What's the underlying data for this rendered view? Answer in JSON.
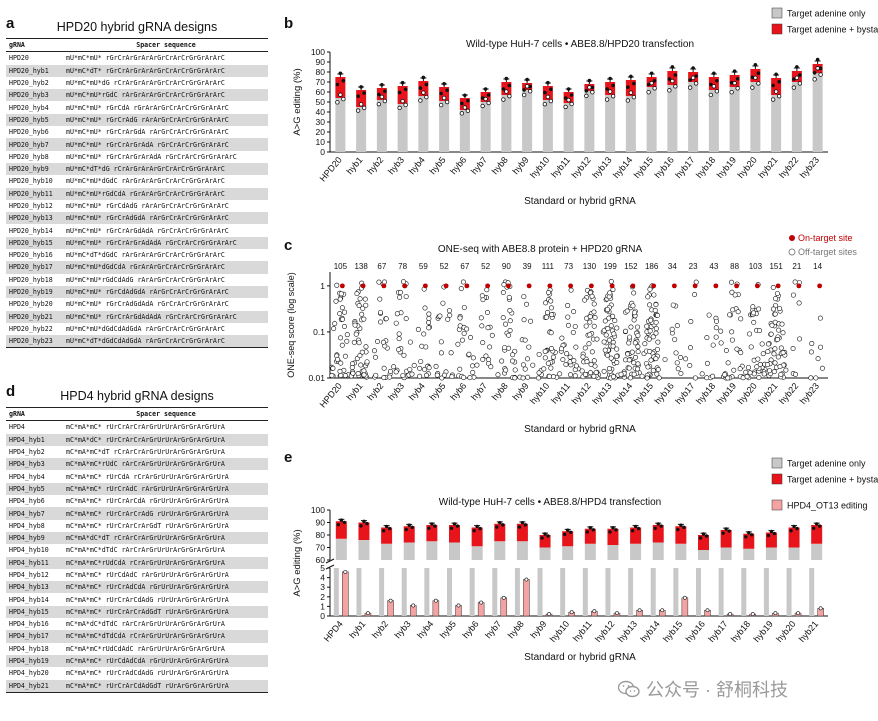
{
  "panels": {
    "a": "a",
    "b": "b",
    "c": "c",
    "d": "d",
    "e": "e"
  },
  "table_a": {
    "title": "HPD20 hybrid gRNA designs",
    "header_name": "gRNA",
    "header_spacer": "Spacer sequence",
    "rows": [
      {
        "name": "HPD20",
        "seq": "mU*mC*mU* rGrCrArGrArArGrCrArCrGrGrArArC"
      },
      {
        "name": "HPD20_hyb1",
        "seq": "mU*mC*dT* rGrCrArGrArArGrCrArCrGrGrArArC"
      },
      {
        "name": "HPD20_hyb2",
        "seq": "mU*mC*mU*dG rCrArGrArArGrCrArCrGrGrArArC"
      },
      {
        "name": "HPD20_hyb3",
        "seq": "mU*mC*mU*rGdC rArGrArArGrCrArCrGrGrArArC"
      },
      {
        "name": "HPD20_hyb4",
        "seq": "mU*mC*mU* rGrCdA rGrArArGrCrArCrGrGrArArC"
      },
      {
        "name": "HPD20_hyb5",
        "seq": "mU*mC*mU* rGrCrAdG rArArGrCrArCrGrGrArArC"
      },
      {
        "name": "HPD20_hyb6",
        "seq": "mU*mC*mU* rGrCrArGdA rArGrCrArCrGrGrArArC"
      },
      {
        "name": "HPD20_hyb7",
        "seq": "mU*mC*mU* rGrCrArGrAdA rGrCrArCrGrGrArArC"
      },
      {
        "name": "HPD20_hyb8",
        "seq": "mU*mC*mU* rGrCrArGrArAdA rGrCrArCrGrGrArArC"
      },
      {
        "name": "HPD20_hyb9",
        "seq": "mU*mC*dT*dG rCrArGrArArGrCrArCrGrGrArArC"
      },
      {
        "name": "HPD20_hyb10",
        "seq": "mU*mC*mU*dGdC rArGrArArGrCrArCrGrGrArArC"
      },
      {
        "name": "HPD20_hyb11",
        "seq": "mU*mC*mU*rGdCdA rGrArArGrCrArCrGrGrArArC"
      },
      {
        "name": "HPD20_hyb12",
        "seq": "mU*mC*mU* rGrCdAdG rArArGrCrArCrGrGrArArC"
      },
      {
        "name": "HPD20_hyb13",
        "seq": "mU*mC*mU* rGrCrAdGdA rArGrCrArCrGrGrArArC"
      },
      {
        "name": "HPD20_hyb14",
        "seq": "mU*mC*mU* rGrCrArGdAdA rGrCrArCrGrGrArArC"
      },
      {
        "name": "HPD20_hyb15",
        "seq": "mU*mC*mU* rGrCrArGrAdAdA rGrCrArCrGrGrArArC"
      },
      {
        "name": "HPD20_hyb16",
        "seq": "mU*mC*dT*dGdC rArGrArArGrCrArCrGrGrArArC"
      },
      {
        "name": "HPD20_hyb17",
        "seq": "mU*mC*mU*dGdCdA rGrArArGrCrArCrGrGrArArC"
      },
      {
        "name": "HPD20_hyb18",
        "seq": "mU*mC*mU*rGdCdAdG rArArGrCrArCrGrGrArArC"
      },
      {
        "name": "HPD20_hyb19",
        "seq": "mU*mC*mU* rGrCdAdGdA rArGrCrArCrGrGrArArC"
      },
      {
        "name": "HPD20_hyb20",
        "seq": "mU*mC*mU* rGrCrAdGdAdA rGrCrArCrGrGrArArC"
      },
      {
        "name": "HPD20_hyb21",
        "seq": "mU*mC*mU* rGrCrArGdAdAdA rGrCrArCrGrGrArArC"
      },
      {
        "name": "HPD20_hyb22",
        "seq": "mU*mC*mU*dGdCdAdGdA rArGrCrArCrGrGrArArC"
      },
      {
        "name": "HPD20_hyb23",
        "seq": "mU*mC*dT*dGdCdAdGdA rArGrCrArCrGrGrArArC"
      }
    ]
  },
  "table_d": {
    "title": "HPD4 hybrid gRNA designs",
    "header_name": "gRNA",
    "header_spacer": "Spacer sequence",
    "rows": [
      {
        "name": "HPD4",
        "seq": "mC*mA*mC* rUrCrArCrArGrUrUrArGrGrArGrUrA"
      },
      {
        "name": "HPD4_hyb1",
        "seq": "mC*mA*dC* rUrCrArCrArGrUrUrArGrGrArGrUrA"
      },
      {
        "name": "HPD4_hyb2",
        "seq": "mC*mA*mC*dT rCrArCrArGrUrUrArGrGrArGrUrA"
      },
      {
        "name": "HPD4_hyb3",
        "seq": "mC*mA*mC*rUdC rArCrArGrUrUrArGrGrArGrUrA"
      },
      {
        "name": "HPD4_hyb4",
        "seq": "mC*mA*mC* rUrCdA rCrArGrUrUrArGrGrArGrUrA"
      },
      {
        "name": "HPD4_hyb5",
        "seq": "mC*mA*mC* rUrCrAdC rArGrUrUrArGrGrArGrUrA"
      },
      {
        "name": "HPD4_hyb6",
        "seq": "mC*mA*mC* rUrCrArCdA rGrUrUrArGrGrArGrUrA"
      },
      {
        "name": "HPD4_hyb7",
        "seq": "mC*mA*mC* rUrCrArCrAdG rUrUrArGrGrArGrUrA"
      },
      {
        "name": "HPD4_hyb8",
        "seq": "mC*mA*mC* rUrCrArCrArGdT rUrArGrGrArGrUrA"
      },
      {
        "name": "HPD4_hyb9",
        "seq": "mC*mA*dC*dT rCrArCrArGrUrUrArGrGrArGrUrA"
      },
      {
        "name": "HPD4_hyb10",
        "seq": "mC*mA*mC*dTdC rArCrArGrUrUrArGrGrArGrUrA"
      },
      {
        "name": "HPD4_hyb11",
        "seq": "mC*mA*mC*rUdCdA rCrArGrUrUrArGrGrArGrUrA"
      },
      {
        "name": "HPD4_hyb12",
        "seq": "mC*mA*mC* rUrCdAdC rArGrUrUrArGrGrArGrUrA"
      },
      {
        "name": "HPD4_hyb13",
        "seq": "mC*mA*mC* rUrCrAdCdA rGrUrUrArGrGrArGrUrA"
      },
      {
        "name": "HPD4_hyb14",
        "seq": "mC*mA*mC* rUrCrArCdAdG rUrUrArGrGrArGrUrA"
      },
      {
        "name": "HPD4_hyb15",
        "seq": "mC*mA*mC* rUrCrArCrAdGdT rUrArGrGrArGrUrA"
      },
      {
        "name": "HPD4_hyb16",
        "seq": "mC*mA*dC*dTdC rArCrArGrUrUrArGrGrArGrUrA"
      },
      {
        "name": "HPD4_hyb17",
        "seq": "mC*mA*mC*dTdCdA rCrArGrUrUrArGrGrArGrUrA"
      },
      {
        "name": "HPD4_hyb18",
        "seq": "mC*mA*mC*rUdCdAdC rArGrUrUrArGrGrArGrUrA"
      },
      {
        "name": "HPD4_hyb19",
        "seq": "mC*mA*mC* rUrCdAdCdA rGrUrUrArGrGrArGrUrA"
      },
      {
        "name": "HPD4_hyb20",
        "seq": "mC*mA*mC* rUrCrAdCdAdG rUrUrArGrGrArGrUrA"
      },
      {
        "name": "HPD4_hyb21",
        "seq": "mC*mA*mC* rUrCrArCdAdGdT rUrArGrGrArGrUrA"
      }
    ]
  },
  "colors": {
    "red": "#e8141b",
    "gray": "#c8c8c8",
    "pink": "#f4a3a3",
    "dot_red": "#c00000"
  },
  "watermark": {
    "text": "公众号 · 舒桐科技",
    "icon": "wechat-icon"
  },
  "chart_data": [
    {
      "id": "b",
      "type": "bar",
      "title": "Wild-type HuH-7 cells • ABE8.8/HPD20 transfection",
      "ylabel": "A>G editing (%)",
      "xlabel": "Standard or hybrid gRNA",
      "ylim": [
        0,
        100
      ],
      "yticks": [
        0,
        10,
        20,
        30,
        40,
        50,
        60,
        70,
        80,
        90,
        100
      ],
      "legend": [
        "Target adenine only",
        "Target adenine + bystander edit (s)"
      ],
      "legend_position": "top-right",
      "categories": [
        "HPD20",
        "hyb1",
        "hyb2",
        "hyb3",
        "hyb4",
        "hyb5",
        "hyb6",
        "hyb7",
        "hyb8",
        "hyb9",
        "hyb10",
        "hyb11",
        "hyb12",
        "hyb13",
        "hyb14",
        "hyb15",
        "hyb16",
        "hyb17",
        "hyb18",
        "hyb19",
        "hyb20",
        "hyb21",
        "hyb22",
        "hyb23"
      ],
      "series": [
        {
          "name": "Target adenine only",
          "values": [
            54,
            45,
            52,
            48,
            56,
            51,
            42,
            50,
            57,
            62,
            52,
            49,
            61,
            57,
            56,
            65,
            67,
            70,
            62,
            65,
            70,
            57,
            70,
            79
          ]
        },
        {
          "name": "Target adenine + bystander edit (s)",
          "values": [
            75,
            62,
            64,
            66,
            71,
            65,
            54,
            60,
            70,
            69,
            66,
            60,
            68,
            70,
            72,
            75,
            81,
            80,
            75,
            77,
            83,
            74,
            81,
            88
          ]
        }
      ]
    },
    {
      "id": "c",
      "type": "scatter",
      "title": "ONE-seq with ABE8.8 protein + HPD20 gRNA",
      "ylabel": "ONE-seq score (log scale)",
      "xlabel": "Standard or hybrid gRNA",
      "yscale": "log",
      "ylim": [
        0.01,
        2
      ],
      "yticks": [
        "0.01",
        "0.1",
        "1"
      ],
      "legend": [
        "On-target site",
        "Off-target sites"
      ],
      "legend_position": "top-right",
      "categories": [
        "HPD20",
        "hyb1",
        "hyb2",
        "hyb3",
        "hyb4",
        "hyb5",
        "hyb6",
        "hyb7",
        "hyb8",
        "hyb9",
        "hyb10",
        "hyb11",
        "hyb12",
        "hyb13",
        "hyb14",
        "hyb15",
        "hyb16",
        "hyb17",
        "hyb18",
        "hyb19",
        "hyb20",
        "hyb21",
        "hyb22",
        "hyb23"
      ],
      "counts": [
        "105",
        "138",
        "67",
        "78",
        "59",
        "52",
        "67",
        "52",
        "90",
        "39",
        "111",
        "73",
        "130",
        "199",
        "152",
        "186",
        "34",
        "23",
        "43",
        "88",
        "103",
        "151",
        "21",
        "14"
      ],
      "on_target": [
        1,
        1,
        1,
        1,
        1,
        1,
        1,
        1,
        1,
        1,
        1,
        1,
        1,
        1,
        1,
        1,
        1,
        1,
        1,
        1,
        1,
        1,
        1,
        1
      ]
    },
    {
      "id": "e",
      "type": "bar",
      "title": "Wild-type HuH-7 cells • ABE8.8/HPD4 transfection",
      "ylabel": "A>G editing (%)",
      "xlabel": "Standard or hybrid gRNA",
      "ylim_top": [
        60,
        100
      ],
      "yticks_top": [
        60,
        70,
        80,
        90,
        100
      ],
      "ylim_bottom": [
        0,
        5
      ],
      "yticks_bottom": [
        0,
        1,
        2,
        3,
        4,
        5
      ],
      "legend": [
        "Target adenine only",
        "Target adenine + bystander edit (s)",
        "HPD4_OT13 editing"
      ],
      "legend_position": "top-right",
      "categories": [
        "HPD4",
        "hyb1",
        "hyb2",
        "hyb3",
        "hyb4",
        "hyb5",
        "hyb6",
        "hyb7",
        "hyb8",
        "hyb9",
        "hyb10",
        "hyb11",
        "hyb12",
        "hyb13",
        "hyb14",
        "hyb15",
        "hyb16",
        "hyb17",
        "hyb18",
        "hyb19",
        "hyb20",
        "hyb21"
      ],
      "series": [
        {
          "name": "Target adenine only",
          "values": [
            77,
            76,
            73,
            74,
            75,
            74,
            71,
            75,
            75,
            70,
            71,
            73,
            72,
            73,
            74,
            73,
            68,
            70,
            69,
            70,
            70,
            73
          ]
        },
        {
          "name": "Target adenine + bystander edit (s)",
          "values": [
            91,
            90,
            86,
            87,
            88,
            88,
            86,
            89,
            89,
            80,
            83,
            85,
            85,
            86,
            88,
            87,
            80,
            84,
            81,
            82,
            86,
            88
          ]
        },
        {
          "name": "HPD4_OT13 editing",
          "values": [
            4.6,
            0.3,
            1.6,
            1.1,
            1.6,
            1.1,
            1.4,
            1.9,
            3.8,
            0.2,
            0.4,
            0.5,
            0.3,
            0.6,
            0.6,
            1.9,
            0.6,
            0.2,
            0.2,
            0.3,
            0.3,
            0.8
          ]
        }
      ]
    }
  ]
}
